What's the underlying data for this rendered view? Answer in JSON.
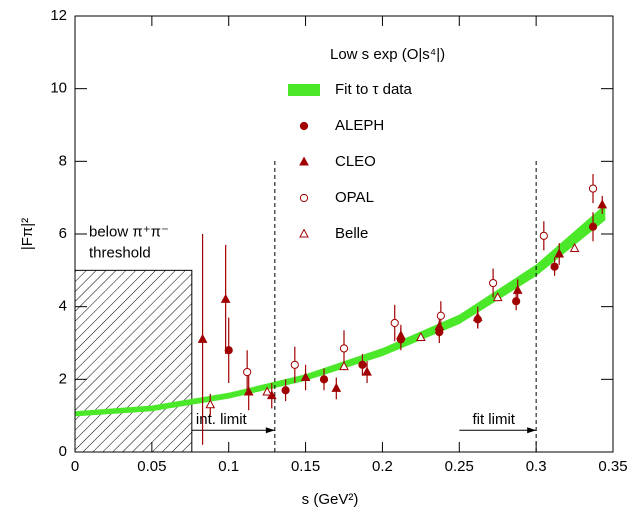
{
  "chart_data": {
    "type": "scatter",
    "xlabel": "s (GeV²)",
    "ylabel": "|Fπ|²",
    "legend_title": "Low s exp (O|s⁴|)",
    "xlim": [
      0,
      0.35
    ],
    "ylim": [
      0,
      12
    ],
    "xticks": [
      0,
      0.05,
      0.1,
      0.15,
      0.2,
      0.25,
      0.3,
      0.35
    ],
    "yticks": [
      0,
      2,
      4,
      6,
      8,
      10,
      12
    ],
    "band": {
      "name": "Fit to τ data",
      "color": "#4be82a",
      "x": [
        0,
        0.05,
        0.1,
        0.15,
        0.2,
        0.25,
        0.3,
        0.345
      ],
      "lower": [
        0.98,
        1.12,
        1.47,
        1.96,
        2.64,
        3.52,
        4.84,
        6.38
      ],
      "upper": [
        1.12,
        1.28,
        1.63,
        2.14,
        2.86,
        3.78,
        5.16,
        6.82
      ]
    },
    "series": [
      {
        "name": "ALEPH",
        "color": "#a00000",
        "marker": "circle",
        "filled": true,
        "x": [
          0.1,
          0.137,
          0.162,
          0.187,
          0.212,
          0.237,
          0.262,
          0.287,
          0.312,
          0.337
        ],
        "values": [
          2.8,
          1.7,
          2.0,
          2.4,
          3.1,
          3.3,
          3.65,
          4.15,
          5.1,
          6.2
        ],
        "errors": [
          0.9,
          0.3,
          0.3,
          0.3,
          0.3,
          0.3,
          0.25,
          0.25,
          0.25,
          0.4
        ]
      },
      {
        "name": "CLEO",
        "color": "#a00000",
        "marker": "triangle",
        "filled": true,
        "x": [
          0.083,
          0.098,
          0.113,
          0.128,
          0.15,
          0.17,
          0.19,
          0.212,
          0.237,
          0.262,
          0.288,
          0.315,
          0.343
        ],
        "values": [
          3.1,
          4.2,
          1.65,
          1.55,
          2.05,
          1.75,
          2.2,
          3.2,
          3.45,
          3.7,
          4.45,
          5.45,
          6.8
        ],
        "errors": [
          2.9,
          1.5,
          0.5,
          0.35,
          0.35,
          0.3,
          0.3,
          0.3,
          0.3,
          0.3,
          0.3,
          0.3,
          0.25
        ]
      },
      {
        "name": "OPAL",
        "color": "#a00000",
        "marker": "circle",
        "filled": false,
        "x": [
          0.112,
          0.143,
          0.175,
          0.208,
          0.238,
          0.272,
          0.305,
          0.337
        ],
        "values": [
          2.2,
          2.4,
          2.85,
          3.55,
          3.75,
          4.65,
          5.95,
          7.25
        ],
        "errors": [
          0.6,
          0.5,
          0.5,
          0.5,
          0.4,
          0.4,
          0.4,
          0.4
        ]
      },
      {
        "name": "Belle",
        "color": "#a00000",
        "marker": "triangle",
        "filled": false,
        "x": [
          0.088,
          0.125,
          0.175,
          0.225,
          0.275,
          0.325
        ],
        "values": [
          1.3,
          1.65,
          2.35,
          3.15,
          4.25,
          5.6
        ],
        "errors": [
          0.3,
          0.1,
          0.1,
          0.1,
          0.1,
          0.1
        ]
      }
    ],
    "threshold_region": {
      "label": [
        "below π⁺π⁻",
        "threshold"
      ],
      "xlim": [
        0,
        0.076
      ],
      "height": 5
    },
    "vlines": [
      0.13,
      0.3
    ],
    "arrows": [
      {
        "label": "int. limit",
        "x": [
          0.076,
          0.13
        ],
        "y": 0.6
      },
      {
        "label": "fit limit",
        "x": [
          0.25,
          0.3
        ],
        "y": 0.6
      }
    ]
  }
}
